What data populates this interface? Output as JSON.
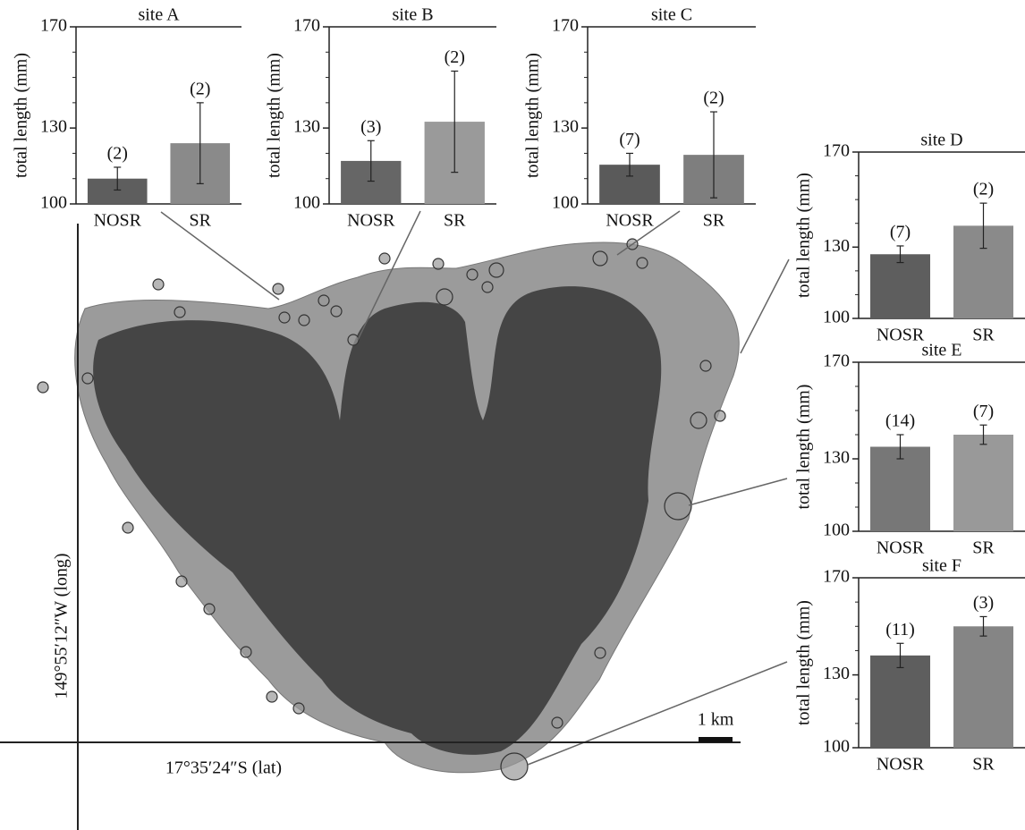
{
  "chart_data": [
    {
      "type": "bar",
      "title": "site A",
      "ylabel": "total length (mm)",
      "categories": [
        "NOSR",
        "SR"
      ],
      "values": [
        110,
        124
      ],
      "errors": [
        4.5,
        16
      ],
      "sample_sizes": [
        "(2)",
        "(2)"
      ],
      "colors": [
        "#5e5e5e",
        "#8a8a8a"
      ],
      "ylim": [
        100,
        170
      ],
      "yticks": [
        100,
        130,
        170
      ],
      "minor_yticks": [
        110,
        120,
        140,
        150,
        160
      ]
    },
    {
      "type": "bar",
      "title": "site B",
      "ylabel": "total length (mm)",
      "categories": [
        "NOSR",
        "SR"
      ],
      "values": [
        117,
        132.5
      ],
      "errors": [
        8,
        20
      ],
      "sample_sizes": [
        "(3)",
        "(2)"
      ],
      "colors": [
        "#666666",
        "#9a9a9a"
      ],
      "ylim": [
        100,
        170
      ],
      "yticks": [
        100,
        130,
        170
      ],
      "minor_yticks": [
        110,
        120,
        140,
        150,
        160
      ]
    },
    {
      "type": "bar",
      "title": "site C",
      "ylabel": "total length (mm)",
      "categories": [
        "NOSR",
        "SR"
      ],
      "values": [
        115.5,
        119.4
      ],
      "errors": [
        4.5,
        17
      ],
      "sample_sizes": [
        "(7)",
        "(2)"
      ],
      "colors": [
        "#5a5a5a",
        "#7e7e7e"
      ],
      "ylim": [
        100,
        170
      ],
      "yticks": [
        100,
        130,
        170
      ],
      "minor_yticks": [
        110,
        120,
        140,
        150,
        160
      ]
    },
    {
      "type": "bar",
      "title": "site D",
      "ylabel": "total length (mm)",
      "categories": [
        "NOSR",
        "SR"
      ],
      "values": [
        127,
        139
      ],
      "errors": [
        3.5,
        9.5
      ],
      "sample_sizes": [
        "(7)",
        "(2)"
      ],
      "colors": [
        "#5e5e5e",
        "#8a8a8a"
      ],
      "ylim": [
        100,
        170
      ],
      "yticks": [
        100,
        130,
        170
      ],
      "minor_yticks": [
        110,
        120,
        140,
        150,
        160
      ]
    },
    {
      "type": "bar",
      "title": "site E",
      "ylabel": "total length (mm)",
      "categories": [
        "NOSR",
        "SR"
      ],
      "values": [
        135,
        140
      ],
      "errors": [
        5,
        4
      ],
      "sample_sizes": [
        "(14)",
        "(7)"
      ],
      "colors": [
        "#777777",
        "#999999"
      ],
      "ylim": [
        100,
        170
      ],
      "yticks": [
        100,
        130,
        170
      ],
      "minor_yticks": [
        110,
        120,
        140,
        150,
        160
      ]
    },
    {
      "type": "bar",
      "title": "site F",
      "ylabel": "total length (mm)",
      "categories": [
        "NOSR",
        "SR"
      ],
      "values": [
        138,
        150
      ],
      "errors": [
        5,
        4
      ],
      "sample_sizes": [
        "(11)",
        "(3)"
      ],
      "colors": [
        "#5e5e5e",
        "#858585"
      ],
      "ylim": [
        100,
        170
      ],
      "yticks": [
        100,
        130,
        170
      ],
      "minor_yticks": [
        110,
        120,
        140,
        150,
        160
      ]
    }
  ],
  "map": {
    "lon_label": "149°55′12″W (long)",
    "lat_label": "17°35′24″S (lat)",
    "scale_label": "1 km"
  }
}
